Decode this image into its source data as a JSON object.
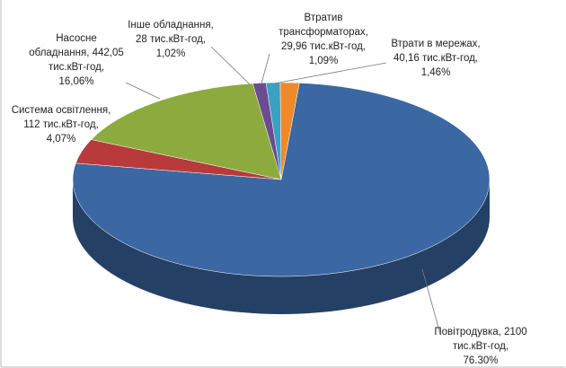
{
  "chart_data": {
    "type": "pie",
    "values": [
      76.3,
      4.07,
      16.06,
      1.02,
      1.09,
      1.46
    ],
    "value_labels": [
      "Повітродувка, 2100\nтис.кВт-год,\n76.30%",
      "Система освітлення,\n112 тис.кВт-год,\n4,07%",
      "Насосне\nобладнання, 442,05\nтис.кВт-год,\n16,06%",
      "Інше обладнання,\n28 тис.кВт-год,\n1,02%",
      "Втратив\nтрансформаторах,\n29,96 тис.кВт-год,\n1,09%",
      "Втрати в мережах,\n40,16 тис.кВт-год,\n1,46%"
    ],
    "colors": [
      "#3b67a3",
      "#b83a3a",
      "#8daa3e",
      "#6b4c8f",
      "#3aa1c2",
      "#f0892a"
    ]
  }
}
